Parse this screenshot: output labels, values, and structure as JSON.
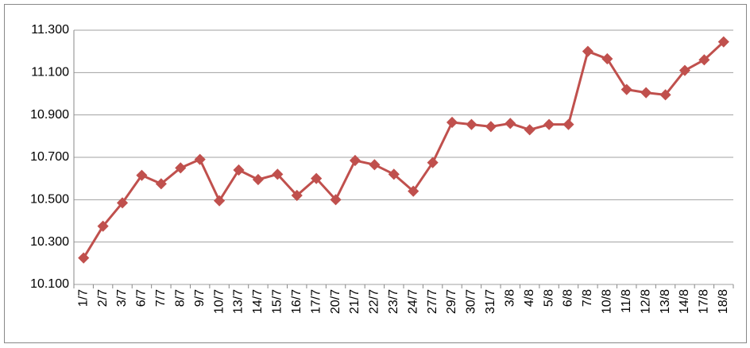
{
  "chart_data": {
    "type": "line",
    "categories": [
      "1/7",
      "2/7",
      "3/7",
      "6/7",
      "7/7",
      "8/7",
      "9/7",
      "10/7",
      "13/7",
      "14/7",
      "15/7",
      "16/7",
      "17/7",
      "20/7",
      "21/7",
      "22/7",
      "23/7",
      "24/7",
      "27/7",
      "29/7",
      "30/7",
      "31/7",
      "3/8",
      "4/8",
      "5/8",
      "6/8",
      "7/8",
      "10/8",
      "11/8",
      "12/8",
      "13/8",
      "14/8",
      "17/8",
      "18/8"
    ],
    "series": [
      {
        "color": "#c0504d",
        "values": [
          10225,
          10375,
          10485,
          10615,
          10575,
          10650,
          10690,
          10495,
          10640,
          10595,
          10620,
          10520,
          10600,
          10500,
          10685,
          10665,
          10620,
          10540,
          10675,
          10865,
          10855,
          10845,
          10860,
          10830,
          10855,
          10855,
          11200,
          11165,
          11020,
          11005,
          10995,
          11110,
          11160,
          11245
        ]
      }
    ],
    "ylim": [
      10100,
      11300
    ],
    "yticks": [
      {
        "value": 10100,
        "label": "10.100"
      },
      {
        "value": 10300,
        "label": "10.300"
      },
      {
        "value": 10500,
        "label": "10.500"
      },
      {
        "value": 10700,
        "label": "10.700"
      },
      {
        "value": 10900,
        "label": "10.900"
      },
      {
        "value": 11100,
        "label": "11.100"
      },
      {
        "value": 11300,
        "label": "11.300"
      }
    ],
    "grid": true
  }
}
